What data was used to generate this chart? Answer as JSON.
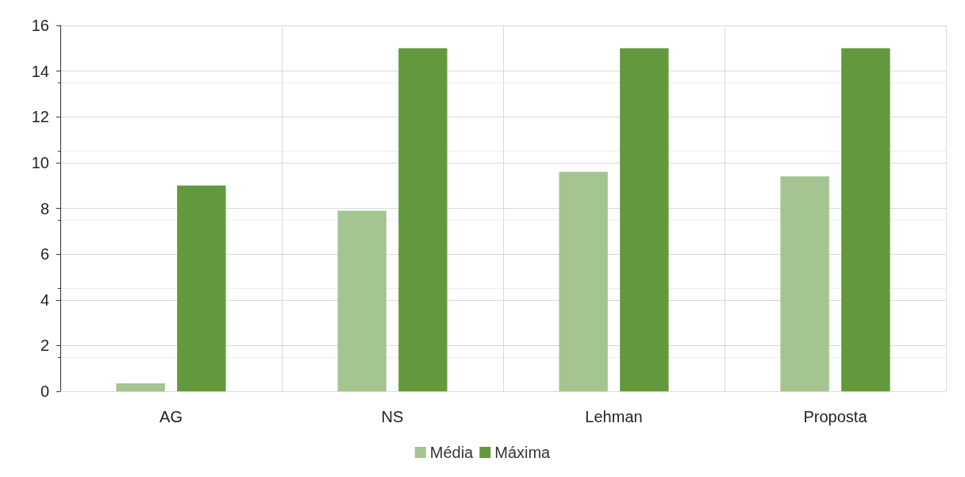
{
  "chart_data": {
    "type": "bar",
    "categories": [
      "AG",
      "NS",
      "Lehman",
      "Proposta"
    ],
    "series": [
      {
        "name": "Média",
        "color": "#a4c490",
        "values": [
          0.35,
          7.9,
          9.6,
          9.4
        ]
      },
      {
        "name": "Máxima",
        "color": "#63993d",
        "values": [
          9,
          15,
          15,
          15
        ]
      }
    ],
    "ylim": [
      0,
      16
    ],
    "yticks": [
      0,
      2,
      4,
      6,
      8,
      10,
      12,
      14,
      16
    ],
    "grid": true,
    "legend": "bottom"
  }
}
